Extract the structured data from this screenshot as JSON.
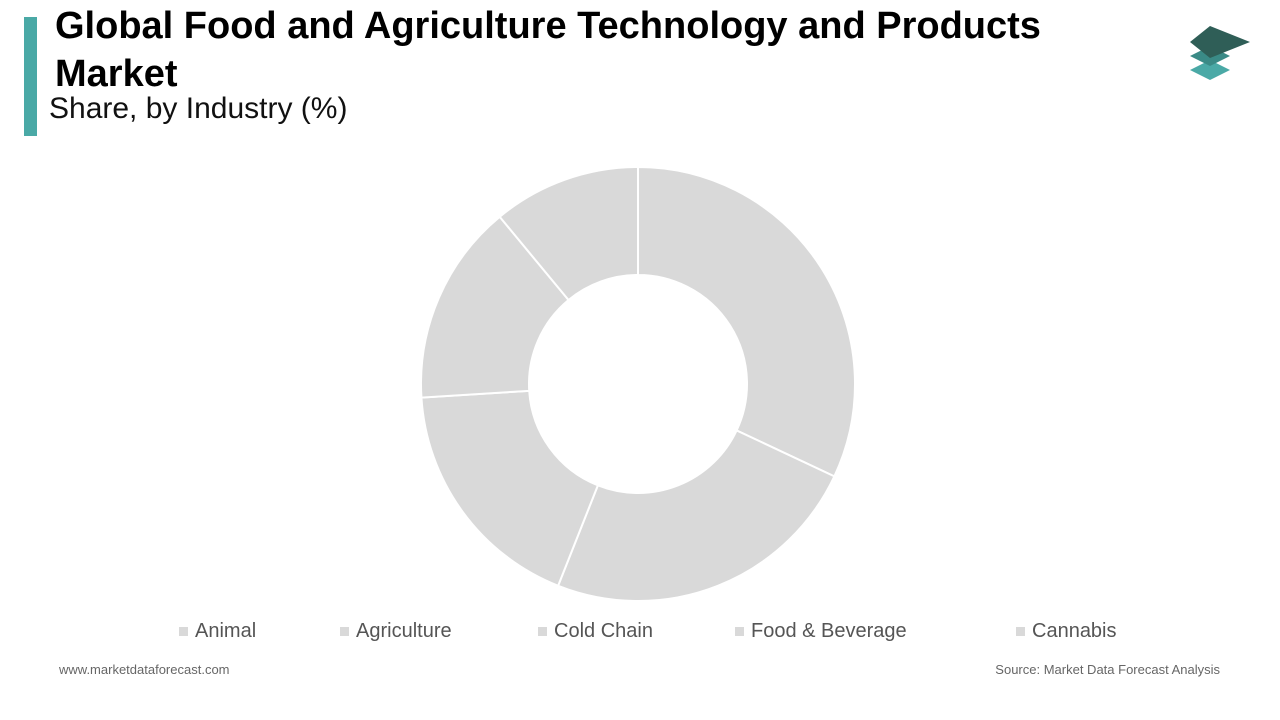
{
  "chart_data": {
    "type": "pie",
    "donut": true,
    "title": "Global Food and Agriculture Technology and Products Market",
    "subtitle": "Share, by Industry  (%)",
    "categories": [
      "Animal",
      "Agriculture",
      "Cold Chain",
      "Food & Beverage",
      "Cannabis"
    ],
    "values": [
      32,
      24,
      18,
      15,
      11
    ],
    "color": "#d9d9d9"
  },
  "footer": {
    "website": "www.marketdataforecast.com",
    "source": "Source: Market Data Forecast Analysis"
  }
}
